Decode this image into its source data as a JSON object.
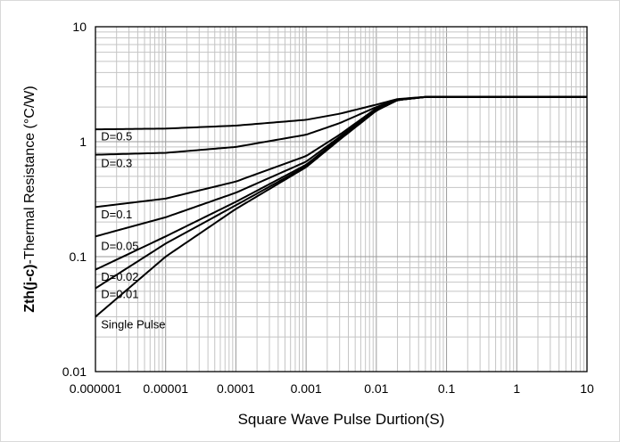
{
  "chart_data": {
    "type": "line",
    "xlabel": "Square Wave Pulse Durtion(S)",
    "ylabel_bold": "Zth(j-c)",
    "ylabel_rest": "-Thermal  Resistance (°C/W)",
    "x_scale": "log",
    "y_scale": "log",
    "xlim": [
      1e-06,
      10
    ],
    "ylim": [
      0.01,
      10
    ],
    "grid": true,
    "x_tick_labels": [
      "0.000001",
      "0.00001",
      "0.0001",
      "0.001",
      "0.01",
      "0.1",
      "1",
      "10"
    ],
    "y_tick_labels": [
      "0.01",
      "0.1",
      "1",
      "10"
    ],
    "line_color": "#000000",
    "series": [
      {
        "name": "D=0.5",
        "label_x": 1.2e-06,
        "label_y": 1.03,
        "points": [
          [
            1e-06,
            1.28
          ],
          [
            1e-05,
            1.3
          ],
          [
            0.0001,
            1.38
          ],
          [
            0.001,
            1.55
          ],
          [
            0.003,
            1.75
          ],
          [
            0.01,
            2.1
          ],
          [
            0.02,
            2.35
          ],
          [
            0.05,
            2.45
          ],
          [
            0.1,
            2.45
          ],
          [
            1,
            2.45
          ],
          [
            10,
            2.45
          ]
        ]
      },
      {
        "name": "D=0.3",
        "label_x": 1.2e-06,
        "label_y": 0.6,
        "points": [
          [
            1e-06,
            0.77
          ],
          [
            1e-05,
            0.8
          ],
          [
            0.0001,
            0.9
          ],
          [
            0.001,
            1.15
          ],
          [
            0.003,
            1.45
          ],
          [
            0.01,
            2.0
          ],
          [
            0.02,
            2.33
          ],
          [
            0.05,
            2.45
          ],
          [
            0.1,
            2.45
          ],
          [
            1,
            2.45
          ],
          [
            10,
            2.45
          ]
        ]
      },
      {
        "name": "D=0.1",
        "label_x": 1.2e-06,
        "label_y": 0.215,
        "points": [
          [
            1e-06,
            0.27
          ],
          [
            1e-05,
            0.32
          ],
          [
            0.0001,
            0.45
          ],
          [
            0.001,
            0.75
          ],
          [
            0.003,
            1.15
          ],
          [
            0.01,
            1.95
          ],
          [
            0.02,
            2.32
          ],
          [
            0.05,
            2.45
          ],
          [
            0.1,
            2.45
          ],
          [
            1,
            2.45
          ],
          [
            10,
            2.45
          ]
        ]
      },
      {
        "name": "D=0.05",
        "label_x": 1.2e-06,
        "label_y": 0.114,
        "points": [
          [
            1e-06,
            0.15
          ],
          [
            1e-05,
            0.22
          ],
          [
            0.0001,
            0.36
          ],
          [
            0.001,
            0.67
          ],
          [
            0.003,
            1.1
          ],
          [
            0.01,
            1.9
          ],
          [
            0.02,
            2.3
          ],
          [
            0.05,
            2.45
          ],
          [
            0.1,
            2.45
          ],
          [
            1,
            2.45
          ],
          [
            10,
            2.45
          ]
        ]
      },
      {
        "name": "D=0.02",
        "label_x": 1.2e-06,
        "label_y": 0.062,
        "points": [
          [
            1e-06,
            0.077
          ],
          [
            1e-05,
            0.15
          ],
          [
            0.0001,
            0.3
          ],
          [
            0.001,
            0.63
          ],
          [
            0.003,
            1.07
          ],
          [
            0.01,
            1.88
          ],
          [
            0.02,
            2.3
          ],
          [
            0.05,
            2.45
          ],
          [
            0.1,
            2.45
          ],
          [
            1,
            2.45
          ],
          [
            10,
            2.45
          ]
        ]
      },
      {
        "name": "D=0.01",
        "label_x": 1.2e-06,
        "label_y": 0.0435,
        "points": [
          [
            1e-06,
            0.053
          ],
          [
            1e-05,
            0.13
          ],
          [
            0.0001,
            0.28
          ],
          [
            0.001,
            0.61
          ],
          [
            0.003,
            1.05
          ],
          [
            0.01,
            1.87
          ],
          [
            0.02,
            2.3
          ],
          [
            0.05,
            2.45
          ],
          [
            0.1,
            2.45
          ],
          [
            1,
            2.45
          ],
          [
            10,
            2.45
          ]
        ]
      },
      {
        "name": "Single Pulse",
        "label_x": 1.2e-06,
        "label_y": 0.0237,
        "points": [
          [
            1e-06,
            0.03
          ],
          [
            1e-05,
            0.1
          ],
          [
            0.0001,
            0.26
          ],
          [
            0.001,
            0.6
          ],
          [
            0.003,
            1.04
          ],
          [
            0.01,
            1.86
          ],
          [
            0.02,
            2.3
          ],
          [
            0.05,
            2.45
          ],
          [
            0.1,
            2.45
          ],
          [
            1,
            2.45
          ],
          [
            10,
            2.45
          ]
        ]
      }
    ]
  }
}
